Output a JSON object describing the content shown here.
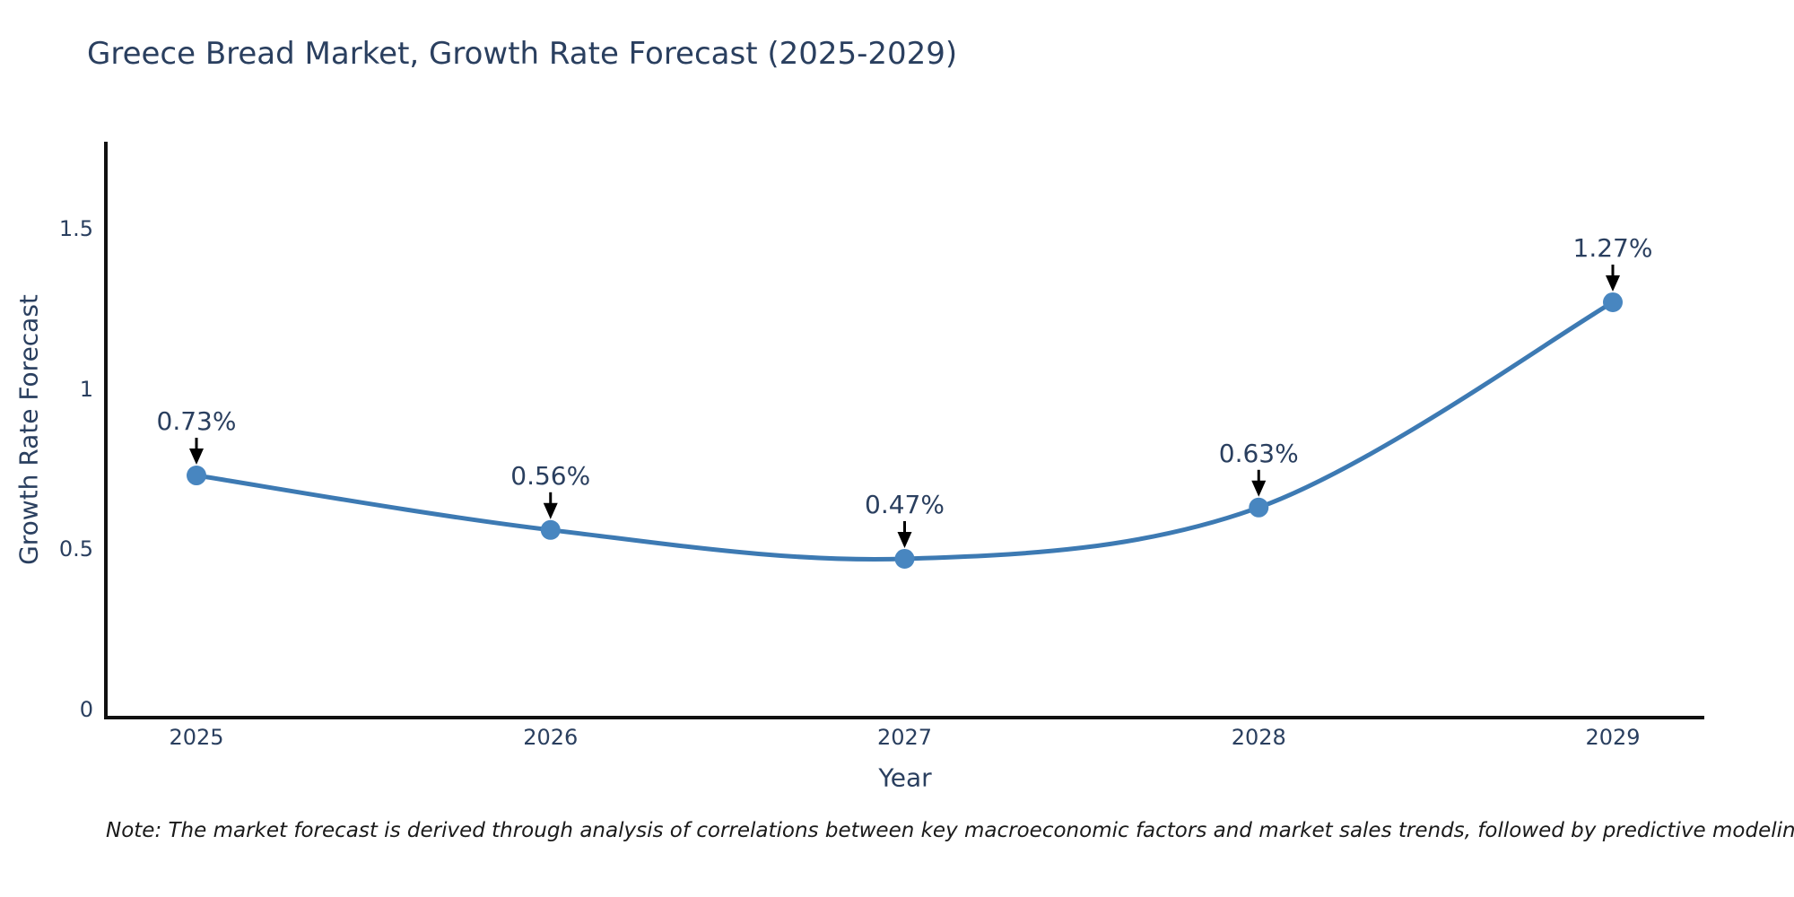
{
  "title": "Greece Bread Market, Growth Rate Forecast (2025-2029)",
  "note": "Note: The market forecast is derived through analysis of correlations between key macroeconomic factors and market sales trends, followed by predictive modeling to project future sales",
  "chart_data": {
    "type": "line",
    "title": "Greece Bread Market, Growth Rate Forecast (2025-2029)",
    "xlabel": "Year",
    "ylabel": "Growth Rate Forecast",
    "x": [
      2025,
      2026,
      2027,
      2028,
      2029
    ],
    "x_tick_labels": [
      "2025",
      "2026",
      "2027",
      "2028",
      "2029"
    ],
    "series": [
      {
        "name": "Growth Rate Forecast",
        "values": [
          0.73,
          0.56,
          0.47,
          0.63,
          1.27
        ],
        "point_labels": [
          "0.73%",
          "0.56%",
          "0.47%",
          "0.63%",
          "1.27%"
        ]
      }
    ],
    "y_ticks": [
      0,
      0.5,
      1,
      1.5
    ],
    "y_tick_labels": [
      "0",
      "0.5",
      "1",
      "1.5"
    ],
    "ylim": [
      0,
      1.8
    ],
    "grid": false,
    "legend": false,
    "line_shape": "spline",
    "annotation_arrows": true,
    "colors": {
      "line": "#3d7ab3",
      "marker": "#4886c0",
      "axis": "#111111",
      "text": "#2a3f5f",
      "arrow": "#000000",
      "background": "#ffffff"
    }
  }
}
